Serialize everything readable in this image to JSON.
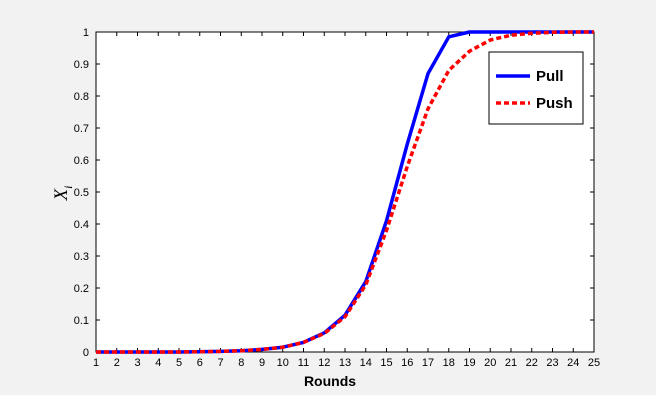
{
  "chart_data": {
    "type": "line",
    "xlabel": "Rounds",
    "ylabel": "X",
    "ylabel_sub": "i",
    "xlim": [
      1,
      25
    ],
    "ylim": [
      0,
      1
    ],
    "x_ticks": [
      "1",
      "2",
      "3",
      "4",
      "5",
      "6",
      "7",
      "8",
      "9",
      "10",
      "11",
      "12",
      "13",
      "14",
      "15",
      "16",
      "17",
      "18",
      "19",
      "20",
      "21",
      "22",
      "23",
      "24",
      "25"
    ],
    "y_ticks": [
      "0",
      "0.1",
      "0.2",
      "0.3",
      "0.4",
      "0.5",
      "0.6",
      "0.7",
      "0.8",
      "0.9",
      "1"
    ],
    "grid": false,
    "legend_position": "top-right",
    "x": [
      1,
      2,
      3,
      4,
      5,
      6,
      7,
      8,
      9,
      10,
      11,
      12,
      13,
      14,
      15,
      16,
      17,
      18,
      19,
      20,
      21,
      22,
      23,
      24,
      25
    ],
    "series": [
      {
        "name": "Pull",
        "color": "#0000ff",
        "style": "solid",
        "values": [
          0,
          0,
          0,
          0,
          0,
          0.001,
          0.002,
          0.004,
          0.008,
          0.015,
          0.03,
          0.06,
          0.115,
          0.22,
          0.41,
          0.65,
          0.87,
          0.985,
          1,
          1,
          1,
          1,
          1,
          1,
          1
        ]
      },
      {
        "name": "Push",
        "color": "#ff0000",
        "style": "dashed",
        "values": [
          0,
          0,
          0,
          0,
          0,
          0.001,
          0.002,
          0.004,
          0.008,
          0.015,
          0.03,
          0.058,
          0.11,
          0.21,
          0.38,
          0.58,
          0.76,
          0.88,
          0.94,
          0.975,
          0.99,
          0.996,
          0.999,
          1,
          1
        ]
      }
    ]
  }
}
